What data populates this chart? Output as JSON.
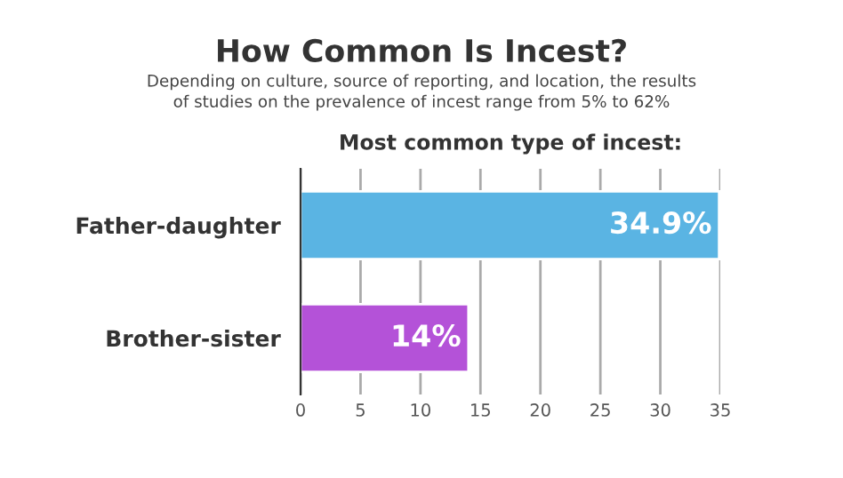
{
  "chart_data": {
    "type": "bar",
    "orientation": "horizontal",
    "title": "How Common Is Incest?",
    "subtitle": "Depending on culture, source of reporting, and location, the results\nof studies on the prevalence of incest range from 5% to 62%",
    "annotations": [
      "Most common type of incest:"
    ],
    "categories": [
      "Father-daughter",
      "Brother-sister"
    ],
    "values": [
      34.9,
      14
    ],
    "colors": [
      "#5ab4e3",
      "#b452d8"
    ],
    "value_labels": [
      "34.9%",
      "14%"
    ],
    "xlim": [
      0,
      35
    ],
    "xticks": [
      0,
      5,
      10,
      15,
      20,
      25,
      30,
      35
    ],
    "grid": "x"
  }
}
